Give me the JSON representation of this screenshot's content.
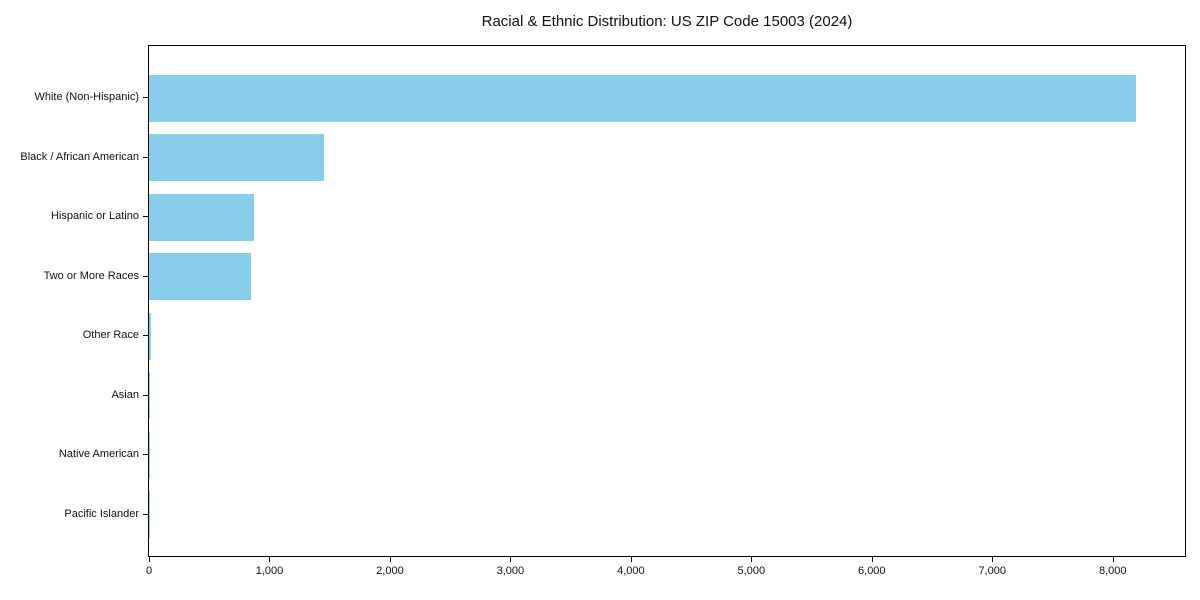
{
  "chart_data": {
    "type": "bar",
    "orientation": "horizontal",
    "title": "Racial & Ethnic Distribution: US ZIP Code 15003 (2024)",
    "categories": [
      "White (Non-Hispanic)",
      "Black / African American",
      "Hispanic or Latino",
      "Two or More Races",
      "Other Race",
      "Asian",
      "Native American",
      "Pacific Islander"
    ],
    "values": [
      8190,
      1450,
      875,
      845,
      15,
      8,
      4,
      2
    ],
    "bar_color": "#87CEEB",
    "xlabel": "",
    "ylabel": "",
    "xlim": [
      0,
      8600
    ],
    "xticks": [
      0,
      1000,
      2000,
      3000,
      4000,
      5000,
      6000,
      7000,
      8000
    ],
    "xtick_labels": [
      "0",
      "1,000",
      "2,000",
      "3,000",
      "4,000",
      "5,000",
      "6,000",
      "7,000",
      "8,000"
    ],
    "grid": false,
    "legend": "none"
  }
}
